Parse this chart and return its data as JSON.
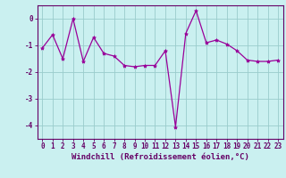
{
  "x": [
    0,
    1,
    2,
    3,
    4,
    5,
    6,
    7,
    8,
    9,
    10,
    11,
    12,
    13,
    14,
    15,
    16,
    17,
    18,
    19,
    20,
    21,
    22,
    23
  ],
  "y": [
    -1.1,
    -0.6,
    -1.5,
    0.0,
    -1.6,
    -0.7,
    -1.3,
    -1.4,
    -1.75,
    -1.8,
    -1.75,
    -1.75,
    -1.2,
    -4.05,
    -0.55,
    0.3,
    -0.9,
    -0.8,
    -0.95,
    -1.2,
    -1.55,
    -1.6,
    -1.6,
    -1.55
  ],
  "line_color": "#990099",
  "marker": "*",
  "marker_size": 3,
  "xlabel": "Windchill (Refroidissement éolien,°C)",
  "ylim": [
    -4.5,
    0.5
  ],
  "xlim": [
    -0.5,
    23.5
  ],
  "yticks": [
    0,
    -1,
    -2,
    -3,
    -4
  ],
  "xticks": [
    0,
    1,
    2,
    3,
    4,
    5,
    6,
    7,
    8,
    9,
    10,
    11,
    12,
    13,
    14,
    15,
    16,
    17,
    18,
    19,
    20,
    21,
    22,
    23
  ],
  "bg_color": "#caf0f0",
  "grid_color": "#99cccc",
  "label_color": "#660066",
  "tick_color": "#660066",
  "spine_color": "#660066",
  "xlabel_fontsize": 6.5,
  "tick_fontsize": 5.5
}
